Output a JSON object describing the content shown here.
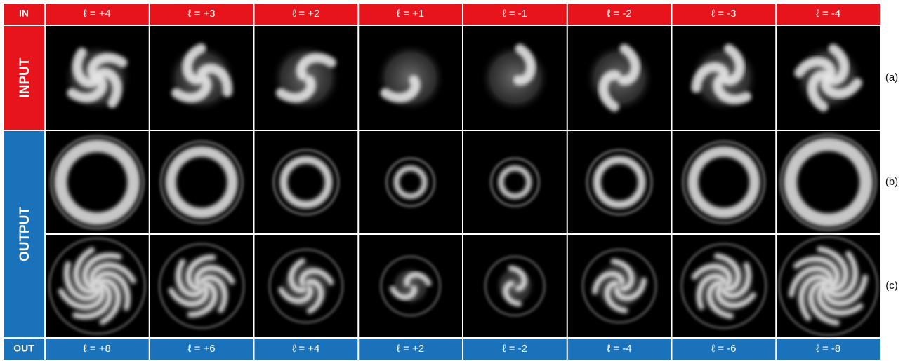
{
  "header": {
    "corner": "IN",
    "labels": [
      "ℓ = +4",
      "ℓ = +3",
      "ℓ = +2",
      "ℓ = +1",
      "ℓ = -1",
      "ℓ = -2",
      "ℓ = -3",
      "ℓ = -4"
    ]
  },
  "side_labels": [
    "INPUT",
    "OUTPUT"
  ],
  "footer": {
    "corner": "OUT",
    "labels": [
      "ℓ = +8",
      "ℓ = +6",
      "ℓ = +4",
      "ℓ = +2",
      "ℓ = -2",
      "ℓ = -4",
      "ℓ = -6",
      "ℓ = -8"
    ]
  },
  "panel_labels": [
    "(a)",
    "(b)",
    "(c)"
  ]
}
